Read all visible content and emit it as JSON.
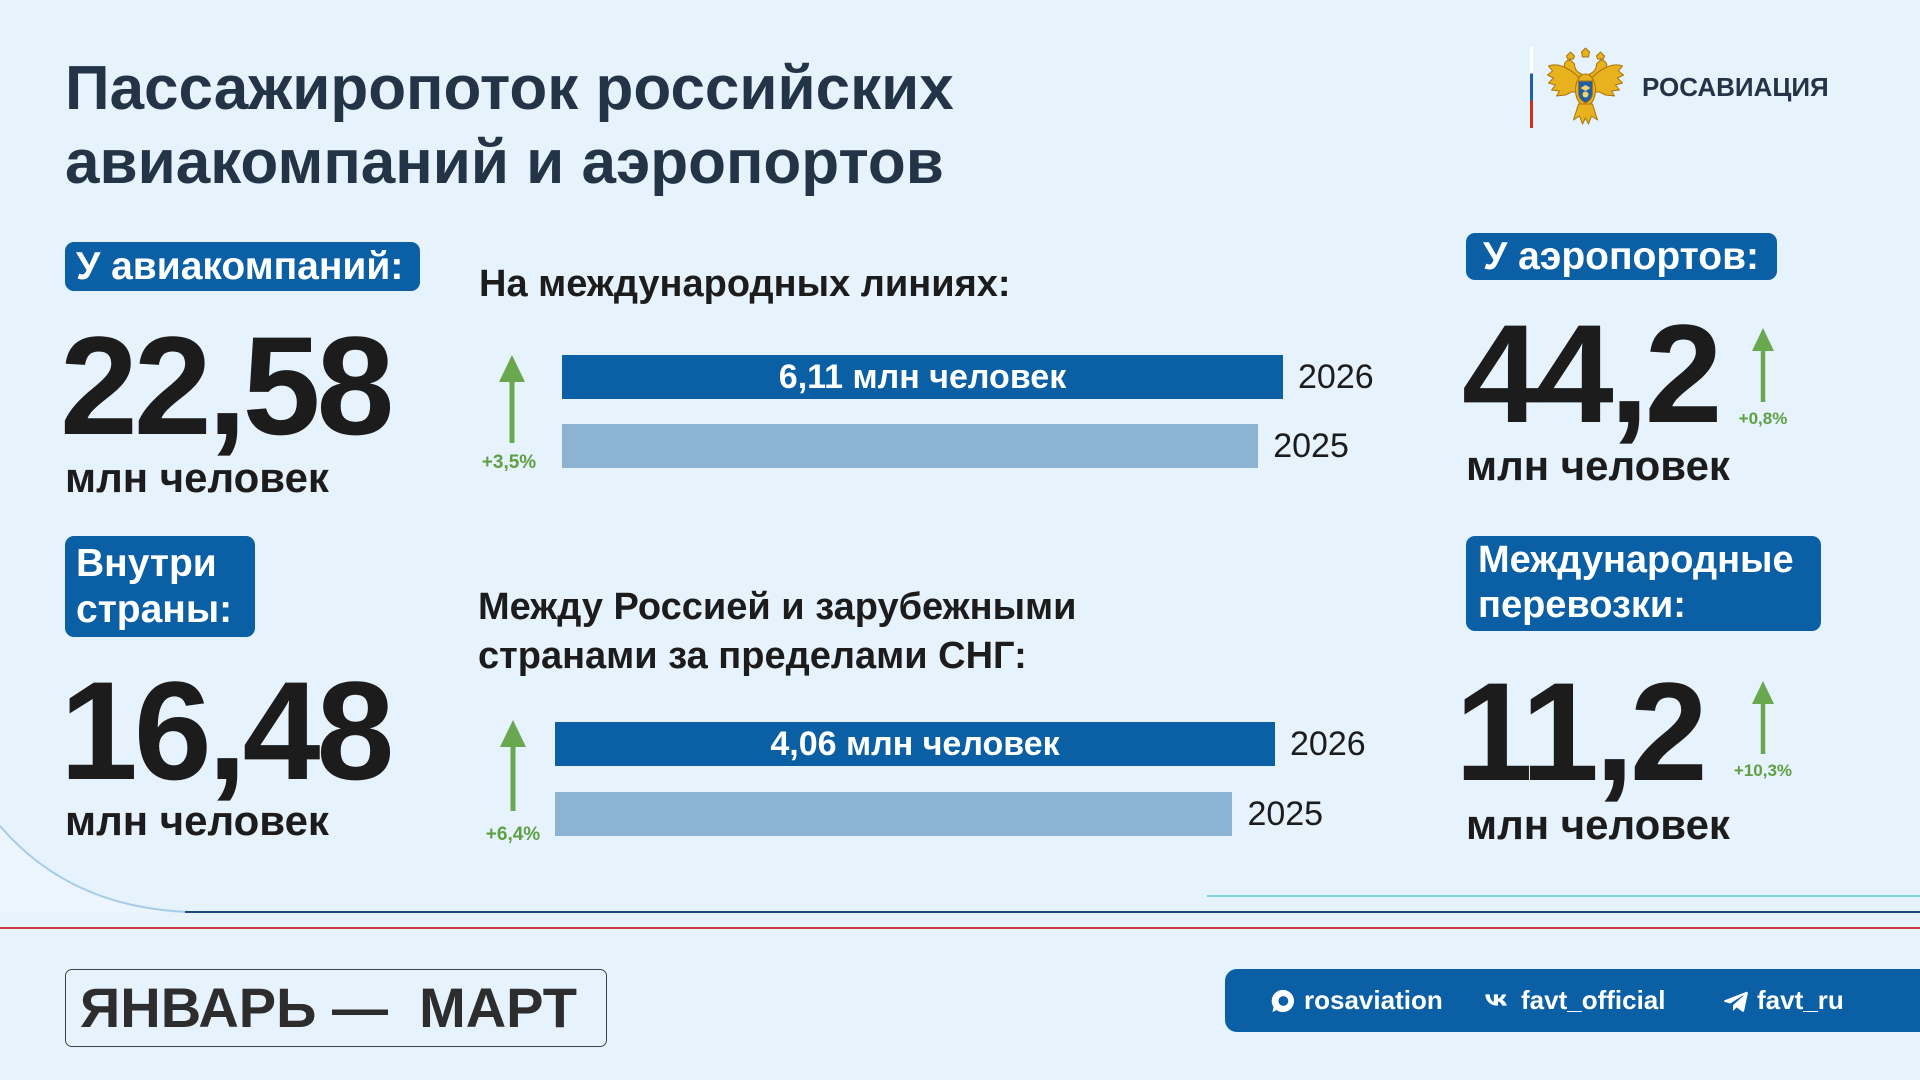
{
  "header": {
    "title_lines": [
      "Пассажиропоток российских",
      "авиакомпаний и аэропортов"
    ]
  },
  "brand": {
    "name": "РОСАВИАЦИЯ",
    "emblem_icon": "double-headed-eagle-emblem-icon"
  },
  "stats": {
    "airlines": {
      "badge": "У авиакомпаний:",
      "value": "22,58",
      "unit": "млн человек"
    },
    "domestic": {
      "badge_lines": [
        "Внутри",
        "страны:"
      ],
      "value": "16,48",
      "unit": "млн человек"
    },
    "airports": {
      "badge": "У аэропортов:",
      "value": "44,2",
      "unit": "млн человек",
      "change": "+0,8%",
      "change_icon": "up-arrow-icon"
    },
    "international": {
      "badge_lines": [
        "Международные",
        "перевозки:"
      ],
      "value": "11,2",
      "unit": "млн человек",
      "change": "+10,3%",
      "change_icon": "up-arrow-icon"
    }
  },
  "chart_data": [
    {
      "type": "bar",
      "orientation": "horizontal",
      "title_lines": [
        "На международных линиях:"
      ],
      "categories": [
        "2026",
        "2025"
      ],
      "values": [
        6.11,
        5.9
      ],
      "value_labels": [
        "6,11 млн человек",
        null
      ],
      "change_label": "+3,5%",
      "change_icon": "up-arrow-icon",
      "grid": false,
      "legend": "none",
      "colors": [
        "#0b5fa5",
        "#8cb4d2"
      ]
    },
    {
      "type": "bar",
      "orientation": "horizontal",
      "title_lines": [
        "Между Россией и зарубежными",
        "странами за пределами СНГ:"
      ],
      "categories": [
        "2026",
        "2025"
      ],
      "values": [
        4.06,
        3.82
      ],
      "value_labels": [
        "4,06 млн человек",
        null
      ],
      "change_label": "+6,4%",
      "change_icon": "up-arrow-icon",
      "grid": false,
      "legend": "none",
      "colors": [
        "#0b5fa5",
        "#8cb4d2"
      ]
    }
  ],
  "period": {
    "label": "ЯНВАРЬ —  МАРТ"
  },
  "social": {
    "items": [
      {
        "icon": "max-messenger-icon",
        "handle": "rosaviation"
      },
      {
        "icon": "vk-icon",
        "handle": "favt_official"
      },
      {
        "icon": "telegram-icon",
        "handle": "favt_ru"
      }
    ]
  },
  "colors": {
    "brand_blue": "#0b5fa5",
    "bar_previous_year": "#8cb4d2",
    "growth_green": "#6aa84f",
    "title_text": "#243447",
    "accent_red": "#c93a3a",
    "background": "#e6f2fc"
  }
}
